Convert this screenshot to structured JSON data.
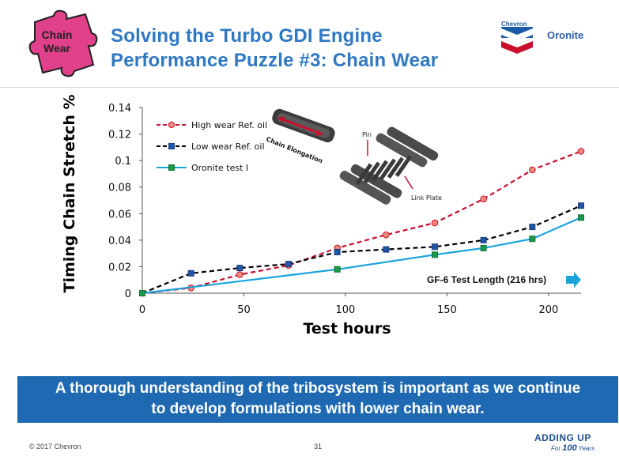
{
  "slide": {
    "title_line1": "Solving the Turbo GDI Engine",
    "title_line2": "Performance Puzzle #3: Chain Wear",
    "puzzle_label_line1": "Chain",
    "puzzle_label_line2": "Wear",
    "brand_chevron": "Chevron",
    "brand_oronite": "Oronite",
    "banner_line1": "A thorough understanding of the tribosystem is important as we continue",
    "banner_line2": "to develop formulations with lower chain wear.",
    "copyright": "© 2017 Chevron",
    "page_number": "31",
    "adding_up": "ADDING UP",
    "adding_up_sub_for": "For",
    "adding_up_sub_num": "100",
    "adding_up_sub_years": "Years",
    "illustration": {
      "chain_elongation_label": "Chain Elongation",
      "pin_label": "Pin",
      "link_plate_label": "Link Plate"
    },
    "gf6_annotation": "GF-6 Test Length (216 hrs)"
  },
  "colors": {
    "title": "#2f78c4",
    "banner": "#1f69b3",
    "high_wear": "#c8102e",
    "low_wear": "#000000",
    "oronite": "#1aa3dd",
    "puzzle": "#e0418a"
  },
  "chart_data": {
    "type": "line",
    "xlabel": "Test hours",
    "ylabel": "Timing Chain Stretch %",
    "xlim": [
      0,
      216
    ],
    "ylim": [
      0,
      0.14
    ],
    "xticks": [
      "0",
      "50",
      "100",
      "150",
      "200"
    ],
    "yticks": [
      "0",
      "0.02",
      "0.04",
      "0.06",
      "0.08",
      "0.1",
      "0.12",
      "0.14"
    ],
    "grid": false,
    "legend_position": "top-left",
    "series": [
      {
        "name": "High wear Ref. oil",
        "style": "dashed",
        "marker": "circle",
        "points": [
          [
            0,
            0
          ],
          [
            24,
            0.004
          ],
          [
            48,
            0.014
          ],
          [
            72,
            0.021
          ],
          [
            96,
            0.034
          ],
          [
            120,
            0.044
          ],
          [
            144,
            0.053
          ],
          [
            168,
            0.071
          ],
          [
            192,
            0.093
          ],
          [
            216,
            0.107
          ]
        ]
      },
      {
        "name": "Low wear Ref. oil",
        "style": "dashed",
        "marker": "square",
        "points": [
          [
            0,
            0
          ],
          [
            24,
            0.015
          ],
          [
            48,
            0.019
          ],
          [
            72,
            0.022
          ],
          [
            96,
            0.031
          ],
          [
            120,
            0.033
          ],
          [
            144,
            0.035
          ],
          [
            168,
            0.04
          ],
          [
            192,
            0.05
          ],
          [
            216,
            0.066
          ]
        ]
      },
      {
        "name": "Oronite test I",
        "style": "solid",
        "marker": "square",
        "points": [
          [
            0,
            0
          ],
          [
            96,
            0.018
          ],
          [
            144,
            0.029
          ],
          [
            168,
            0.034
          ],
          [
            192,
            0.041
          ],
          [
            216,
            0.057
          ]
        ]
      }
    ]
  }
}
